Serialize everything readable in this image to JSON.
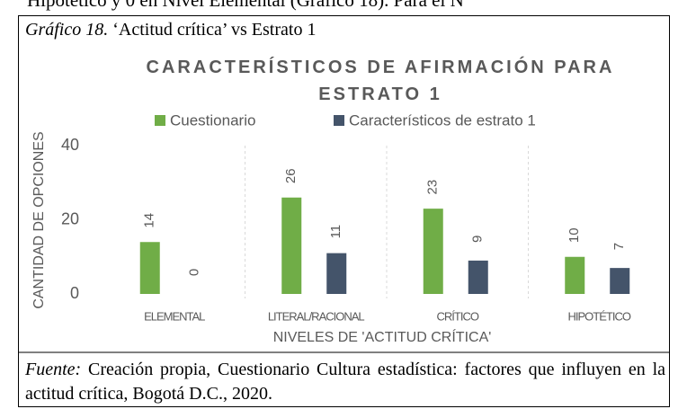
{
  "document": {
    "top_text": "Hipotético y 0 en Nivel Elemental (Gráfico 18). Para el N",
    "caption_label": "Gráfico 18.",
    "caption_text": "‘Actitud crítica’ vs Estrato 1",
    "source_label": "Fuente:",
    "source_text": "Creación propia, Cuestionario Cultura estadística: factores que influyen en la actitud crítica, Bogotá D.C., 2020."
  },
  "chart_data": {
    "type": "bar",
    "title": "CARACTERÍSTICOS DE AFIRMACIÓN PARA ESTRATO 1",
    "x_label": "NIVELES DE 'ACTITUD CRÍTICA'",
    "y_label": "CANTIDAD DE OPCIONES",
    "categories": [
      "ELEMENTAL",
      "LITERAL/RACIONAL",
      "CRÍTICO",
      "HIPOTÉTICO"
    ],
    "series": [
      {
        "name": "Cuestionario",
        "color": "#70ad47",
        "values": [
          14,
          26,
          23,
          10
        ]
      },
      {
        "name": "Característicos de estrato 1",
        "color": "#44546a",
        "values": [
          0,
          11,
          9,
          7
        ]
      }
    ],
    "ylim": [
      0,
      40
    ],
    "yticks": [
      0,
      20,
      40
    ],
    "legend": "top"
  }
}
